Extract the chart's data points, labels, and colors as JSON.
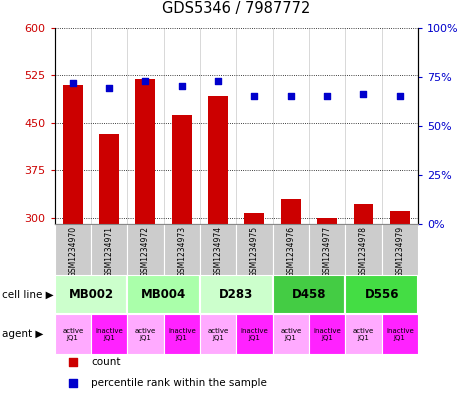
{
  "title": "GDS5346 / 7987772",
  "samples": [
    "GSM1234970",
    "GSM1234971",
    "GSM1234972",
    "GSM1234973",
    "GSM1234974",
    "GSM1234975",
    "GSM1234976",
    "GSM1234977",
    "GSM1234978",
    "GSM1234979"
  ],
  "counts": [
    510,
    432,
    518,
    462,
    492,
    308,
    330,
    300,
    322,
    310
  ],
  "percentiles": [
    72,
    69,
    73,
    70,
    73,
    65,
    65,
    65,
    66,
    65
  ],
  "bar_color": "#cc0000",
  "dot_color": "#0000cc",
  "ylim_left": [
    290,
    600
  ],
  "yticks_left": [
    300,
    375,
    450,
    525,
    600
  ],
  "ylim_right": [
    0,
    100
  ],
  "yticks_right": [
    0,
    25,
    50,
    75,
    100
  ],
  "yticklabels_right": [
    "0%",
    "25%",
    "50%",
    "75%",
    "100%"
  ],
  "cell_line_groups": [
    {
      "label": "MB002",
      "cols": [
        0,
        1
      ],
      "color": "#ccffcc"
    },
    {
      "label": "MB004",
      "cols": [
        2,
        3
      ],
      "color": "#aaffaa"
    },
    {
      "label": "D283",
      "cols": [
        4,
        5
      ],
      "color": "#ccffcc"
    },
    {
      "label": "D458",
      "cols": [
        6,
        7
      ],
      "color": "#44cc44"
    },
    {
      "label": "D556",
      "cols": [
        8,
        9
      ],
      "color": "#44dd44"
    }
  ],
  "agent_labels": [
    "active\nJQ1",
    "inactive\nJQ1",
    "active\nJQ1",
    "inactive\nJQ1",
    "active\nJQ1",
    "inactive\nJQ1",
    "active\nJQ1",
    "inactive\nJQ1",
    "active\nJQ1",
    "inactive\nJQ1"
  ],
  "agent_colors": [
    "#ffaaff",
    "#ff22ff",
    "#ffaaff",
    "#ff22ff",
    "#ffaaff",
    "#ff22ff",
    "#ffaaff",
    "#ff22ff",
    "#ffaaff",
    "#ff22ff"
  ],
  "sample_bg_color": "#cccccc",
  "legend_items": [
    {
      "label": "count",
      "color": "#cc0000"
    },
    {
      "label": "percentile rank within the sample",
      "color": "#0000cc"
    }
  ]
}
